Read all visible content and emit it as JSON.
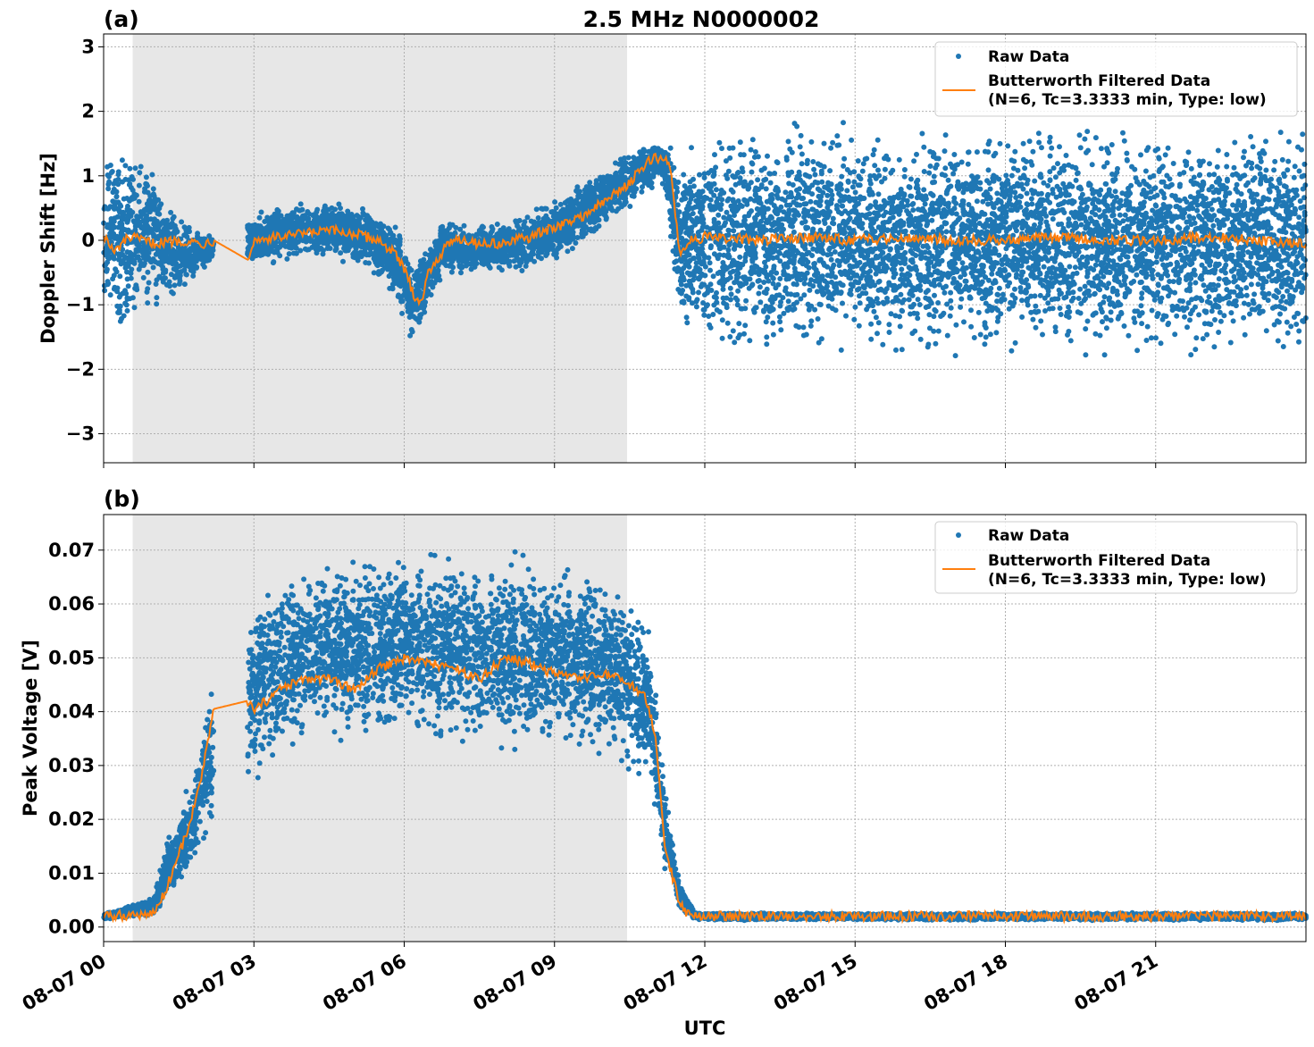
{
  "title": "2.5 MHz N0000002",
  "xlabel": "UTC",
  "x_tick_labels": [
    "08-07 00",
    "08-07 03",
    "08-07 06",
    "08-07 09",
    "08-07 12",
    "08-07 15",
    "08-07 18",
    "08-07 21"
  ],
  "colors": {
    "raw": "#1f77b4",
    "filtered": "#ff7f0e",
    "night_shade": "#e7e7e7",
    "grid": "#b0b0b0"
  },
  "legend": {
    "raw_label": "Raw Data",
    "filtered_line1": "Butterworth Filtered Data",
    "filtered_line2": "(N=6, Tc=3.3333 min, Type: low)"
  },
  "chart_data": [
    {
      "type": "scatter",
      "panel_label": "(a)",
      "title": "2.5 MHz N0000002",
      "xlabel": "",
      "ylabel": "Doppler Shift [Hz]",
      "x_unit": "hours UTC on 08-07",
      "xlim": [
        0,
        24
      ],
      "ylim": [
        -3.45,
        3.2
      ],
      "y_ticks": [
        3,
        2,
        1,
        0,
        -1,
        -2,
        -3
      ],
      "y_tick_labels": [
        "3",
        "2",
        "1",
        "0",
        "−1",
        "−2",
        "−3"
      ],
      "shaded_interval": [
        0.58,
        10.45
      ],
      "data_gap": [
        2.2,
        2.87
      ],
      "grid": true,
      "legend_position": "upper right",
      "series": [
        {
          "name": "Raw Data",
          "kind": "scatter",
          "x": [
            0.0,
            0.5,
            1.0,
            1.5,
            2.2,
            2.87,
            3.5,
            4.5,
            5.2,
            5.8,
            6.2,
            6.8,
            7.5,
            8.5,
            9.3,
            10.0,
            10.8,
            11.2,
            11.5,
            12,
            14,
            16,
            18,
            20,
            22,
            24
          ],
          "y_min": [
            -1.6,
            -1.4,
            -1.2,
            -0.9,
            -0.3,
            -0.5,
            -0.4,
            -0.3,
            -0.5,
            -0.9,
            -1.7,
            -0.6,
            -0.6,
            -0.5,
            -0.3,
            0.1,
            0.7,
            0.8,
            -1.5,
            -1.8,
            -2.0,
            -2.0,
            -2.0,
            -2.0,
            -2.0,
            -2.0
          ],
          "y_max": [
            1.9,
            1.5,
            1.3,
            0.4,
            0.1,
            0.4,
            0.6,
            0.65,
            0.6,
            0.3,
            -0.2,
            0.4,
            0.3,
            0.45,
            0.9,
            1.2,
            1.6,
            1.6,
            1.5,
            1.8,
            2.0,
            2.0,
            2.0,
            2.0,
            2.0,
            1.9
          ]
        },
        {
          "name": "Butterworth Filtered Data (N=6, Tc=3.3333 min, Type: low)",
          "kind": "line",
          "x": [
            0.0,
            0.2,
            0.5,
            1.0,
            1.5,
            2.0,
            2.2,
            2.87,
            3.0,
            3.5,
            4.0,
            4.5,
            5.0,
            5.5,
            5.8,
            6.0,
            6.2,
            6.35,
            6.5,
            7.0,
            7.5,
            8.0,
            8.5,
            9.0,
            9.5,
            10.0,
            10.5,
            10.8,
            11.0,
            11.3,
            11.5,
            11.7,
            12,
            13,
            14,
            15,
            16,
            17,
            18,
            19,
            20,
            21,
            22,
            23,
            24
          ],
          "y": [
            0.1,
            -0.2,
            0.05,
            -0.05,
            0.0,
            -0.05,
            0.0,
            -0.3,
            0.0,
            0.05,
            0.1,
            0.15,
            0.1,
            0.0,
            -0.2,
            -0.45,
            -0.85,
            -0.95,
            -0.45,
            0.05,
            -0.05,
            -0.05,
            0.05,
            0.2,
            0.35,
            0.6,
            0.9,
            1.15,
            1.3,
            1.2,
            -0.2,
            0.0,
            0.05,
            0.0,
            0.05,
            0.0,
            0.05,
            0.0,
            0.0,
            0.05,
            0.0,
            0.0,
            0.05,
            0.0,
            -0.05
          ]
        }
      ]
    },
    {
      "type": "scatter",
      "panel_label": "(b)",
      "title": "",
      "xlabel": "UTC",
      "ylabel": "Peak Voltage [V]",
      "x_unit": "hours UTC on 08-07",
      "xlim": [
        0,
        24
      ],
      "ylim": [
        -0.0027,
        0.0766
      ],
      "y_ticks": [
        0.07,
        0.06,
        0.05,
        0.04,
        0.03,
        0.02,
        0.01,
        0.0
      ],
      "y_tick_labels": [
        "0.07",
        "0.06",
        "0.05",
        "0.04",
        "0.03",
        "0.02",
        "0.01",
        "0.00"
      ],
      "shaded_interval": [
        0.58,
        10.45
      ],
      "data_gap": [
        2.2,
        2.87
      ],
      "grid": true,
      "legend_position": "upper right",
      "series": [
        {
          "name": "Raw Data",
          "kind": "scatter",
          "x": [
            0.0,
            0.5,
            1.0,
            1.2,
            1.5,
            1.8,
            2.0,
            2.2,
            2.87,
            3.0,
            3.5,
            4.5,
            5.5,
            6.5,
            7.5,
            8.5,
            9.5,
            10.5,
            10.9,
            11.2,
            11.5,
            11.8,
            12,
            14,
            16,
            18,
            20,
            22,
            24
          ],
          "y_min": [
            0.0012,
            0.0015,
            0.0018,
            0.003,
            0.006,
            0.01,
            0.015,
            0.018,
            0.02,
            0.025,
            0.03,
            0.033,
            0.033,
            0.033,
            0.03,
            0.03,
            0.032,
            0.028,
            0.025,
            0.01,
            0.003,
            0.0014,
            0.0012,
            0.0012,
            0.0012,
            0.0012,
            0.0012,
            0.0012,
            0.0012
          ],
          "y_max": [
            0.0028,
            0.004,
            0.006,
            0.015,
            0.022,
            0.03,
            0.042,
            0.05,
            0.06,
            0.065,
            0.068,
            0.07,
            0.07,
            0.072,
            0.071,
            0.072,
            0.068,
            0.063,
            0.055,
            0.028,
            0.008,
            0.003,
            0.0027,
            0.0027,
            0.0027,
            0.0027,
            0.0027,
            0.0027,
            0.0027
          ]
        },
        {
          "name": "Butterworth Filtered Data (N=6, Tc=3.3333 min, Type: low)",
          "kind": "line",
          "x": [
            0.0,
            0.5,
            1.0,
            1.2,
            1.4,
            1.6,
            1.8,
            2.0,
            2.2,
            2.87,
            3.0,
            3.5,
            4.0,
            4.5,
            5.0,
            5.5,
            6.0,
            6.5,
            7.0,
            7.5,
            8.0,
            8.5,
            9.0,
            9.5,
            10.0,
            10.5,
            10.8,
            11.0,
            11.2,
            11.5,
            11.7,
            12,
            14,
            16,
            18,
            20,
            22,
            24
          ],
          "y": [
            0.002,
            0.0022,
            0.0025,
            0.006,
            0.011,
            0.016,
            0.022,
            0.03,
            0.0405,
            0.042,
            0.04,
            0.044,
            0.046,
            0.046,
            0.044,
            0.048,
            0.05,
            0.049,
            0.048,
            0.046,
            0.05,
            0.049,
            0.047,
            0.046,
            0.047,
            0.045,
            0.043,
            0.036,
            0.015,
            0.004,
            0.0022,
            0.002,
            0.002,
            0.002,
            0.002,
            0.002,
            0.002,
            0.002
          ]
        }
      ]
    }
  ]
}
